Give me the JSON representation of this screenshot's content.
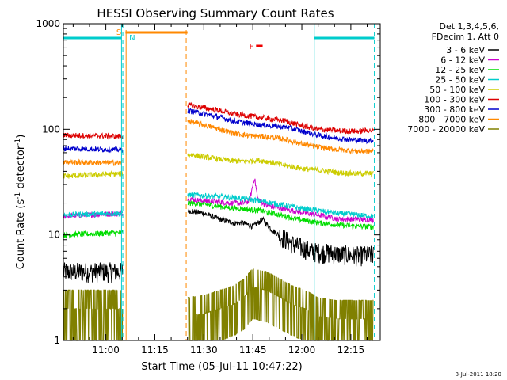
{
  "chart_data": {
    "type": "line",
    "title": "HESSI Observing Summary Count Rates",
    "xlabel": "Start Time (05-Jul-11 10:47:22)",
    "ylabel": "Count Rate (s⁻¹ detector⁻¹)",
    "ylabel_base": "Count Rate (s",
    "ylabel_mid": " detector",
    "ylabel_end": ")",
    "ylabel_exp": "-1",
    "y_scale": "log",
    "xlim_minutes": [
      0,
      97
    ],
    "ylim": [
      1,
      1000
    ],
    "x_ticks": [
      {
        "t": 13,
        "label": "11:00"
      },
      {
        "t": 28,
        "label": "11:15"
      },
      {
        "t": 43,
        "label": "11:30"
      },
      {
        "t": 58,
        "label": "11:45"
      },
      {
        "t": 73,
        "label": "12:00"
      },
      {
        "t": 88,
        "label": "12:15"
      }
    ],
    "y_ticks": [
      {
        "v": 1,
        "label": "1"
      },
      {
        "v": 10,
        "label": "10"
      },
      {
        "v": 100,
        "label": "100"
      },
      {
        "v": 1000,
        "label": "1000"
      }
    ],
    "legend": {
      "header1": "Det 1,3,4,5,6,",
      "header2": "FDecim 1, Att 0",
      "position": "right"
    },
    "annotations": {
      "saa_label": "S",
      "night_label": "N",
      "flare_label": "F",
      "flare_bar_t": [
        59,
        61
      ],
      "saa_bar_t": [
        19,
        38
      ],
      "lines_cyan": [
        17.8,
        76.8
      ],
      "lines_dashed_cyan": [
        18.2,
        95.2
      ],
      "lines_orange": [
        19.2
      ],
      "lines_dashed_orange": [
        37.6
      ],
      "saa_top_cyan": [
        [
          0,
          17.8
        ],
        [
          76.8,
          95.2
        ]
      ]
    },
    "timestamp": "8-Jul-2011 18:20",
    "gaps_t": [
      [
        18.2,
        38.0
      ]
    ],
    "series": [
      {
        "name": "3 - 6 keV",
        "color": "#000000",
        "points": [
          [
            0,
            4.5
          ],
          [
            17.8,
            4.5
          ],
          [
            38.2,
            17
          ],
          [
            43,
            16
          ],
          [
            48,
            14
          ],
          [
            52,
            13
          ],
          [
            55,
            13
          ],
          [
            58,
            12
          ],
          [
            61,
            14
          ],
          [
            64,
            11
          ],
          [
            67,
            9.5
          ],
          [
            71,
            8
          ],
          [
            76,
            7
          ],
          [
            80,
            6.8
          ],
          [
            85,
            6.6
          ],
          [
            90,
            6.4
          ],
          [
            95,
            6.5
          ]
        ]
      },
      {
        "name": "6 - 12 keV",
        "color": "#cc00cc",
        "points": [
          [
            0,
            15
          ],
          [
            17.8,
            16
          ],
          [
            38.2,
            22
          ],
          [
            43,
            21
          ],
          [
            48,
            20.5
          ],
          [
            52,
            20
          ],
          [
            55,
            20
          ],
          [
            57,
            21
          ],
          [
            58.5,
            35
          ],
          [
            59.5,
            22
          ],
          [
            62,
            19
          ],
          [
            66,
            18
          ],
          [
            70,
            17
          ],
          [
            75,
            16
          ],
          [
            80,
            15
          ],
          [
            85,
            14
          ],
          [
            90,
            14
          ],
          [
            95,
            14
          ]
        ]
      },
      {
        "name": "12 - 25 keV",
        "color": "#00dd00",
        "points": [
          [
            0,
            10
          ],
          [
            17.8,
            10.5
          ],
          [
            38.2,
            20
          ],
          [
            43,
            19.5
          ],
          [
            48,
            18.5
          ],
          [
            52,
            18
          ],
          [
            56,
            17.5
          ],
          [
            60,
            17
          ],
          [
            64,
            16
          ],
          [
            68,
            15
          ],
          [
            72,
            14
          ],
          [
            78,
            13
          ],
          [
            84,
            12.5
          ],
          [
            90,
            12
          ],
          [
            95,
            12
          ]
        ]
      },
      {
        "name": "25 - 50 keV",
        "color": "#00cccc",
        "points": [
          [
            0,
            15.5
          ],
          [
            17.8,
            16
          ],
          [
            38.2,
            24
          ],
          [
            43,
            23.5
          ],
          [
            48,
            23
          ],
          [
            52,
            22.5
          ],
          [
            56,
            22
          ],
          [
            60,
            21
          ],
          [
            64,
            20
          ],
          [
            68,
            19
          ],
          [
            72,
            18
          ],
          [
            78,
            17
          ],
          [
            84,
            16
          ],
          [
            90,
            15.5
          ],
          [
            95,
            15
          ]
        ]
      },
      {
        "name": "50 - 100 keV",
        "color": "#cccc00",
        "points": [
          [
            0,
            36
          ],
          [
            17.8,
            38
          ],
          [
            38.2,
            58
          ],
          [
            43,
            55
          ],
          [
            48,
            52
          ],
          [
            52,
            50
          ],
          [
            56,
            50
          ],
          [
            60,
            51
          ],
          [
            63,
            49
          ],
          [
            67,
            46
          ],
          [
            72,
            43
          ],
          [
            78,
            41
          ],
          [
            84,
            39
          ],
          [
            90,
            38
          ],
          [
            95,
            38
          ]
        ]
      },
      {
        "name": "100 - 300 keV",
        "color": "#dd0000",
        "points": [
          [
            0,
            88
          ],
          [
            17.8,
            86
          ],
          [
            38.2,
            170
          ],
          [
            43,
            160
          ],
          [
            48,
            150
          ],
          [
            52,
            140
          ],
          [
            56,
            135
          ],
          [
            60,
            130
          ],
          [
            64,
            125
          ],
          [
            68,
            120
          ],
          [
            72,
            110
          ],
          [
            78,
            100
          ],
          [
            84,
            97
          ],
          [
            90,
            96
          ],
          [
            95,
            98
          ]
        ]
      },
      {
        "name": "300 - 800 keV",
        "color": "#0000cc",
        "points": [
          [
            0,
            66
          ],
          [
            17.8,
            64
          ],
          [
            38.2,
            150
          ],
          [
            43,
            140
          ],
          [
            48,
            130
          ],
          [
            52,
            120
          ],
          [
            56,
            115
          ],
          [
            60,
            110
          ],
          [
            64,
            108
          ],
          [
            68,
            105
          ],
          [
            72,
            98
          ],
          [
            78,
            88
          ],
          [
            84,
            82
          ],
          [
            90,
            79
          ],
          [
            95,
            78
          ]
        ]
      },
      {
        "name": "800 - 7000 keV",
        "color": "#ff8800",
        "points": [
          [
            0,
            49
          ],
          [
            17.8,
            48
          ],
          [
            38.2,
            120
          ],
          [
            43,
            110
          ],
          [
            48,
            100
          ],
          [
            52,
            92
          ],
          [
            56,
            88
          ],
          [
            60,
            86
          ],
          [
            64,
            84
          ],
          [
            68,
            80
          ],
          [
            72,
            74
          ],
          [
            78,
            68
          ],
          [
            84,
            64
          ],
          [
            90,
            62
          ],
          [
            95,
            62
          ]
        ]
      },
      {
        "name": "7000 - 20000 keV",
        "color": "#808000",
        "points": [
          [
            0,
            2.0
          ],
          [
            17.8,
            2.0
          ],
          [
            38.2,
            1.7
          ],
          [
            43,
            1.8
          ],
          [
            48,
            2.0
          ],
          [
            52,
            2.2
          ],
          [
            55,
            2.5
          ],
          [
            58,
            3.2
          ],
          [
            62,
            3.0
          ],
          [
            66,
            2.6
          ],
          [
            70,
            2.2
          ],
          [
            74,
            2.0
          ],
          [
            78,
            1.7
          ],
          [
            84,
            1.6
          ],
          [
            90,
            1.6
          ],
          [
            95,
            1.6
          ]
        ]
      }
    ]
  }
}
